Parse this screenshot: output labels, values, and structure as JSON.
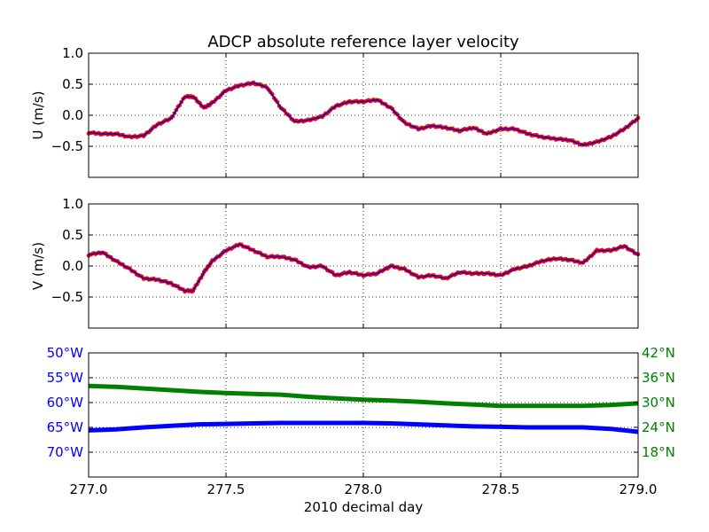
{
  "colors": {
    "axes": "#000000",
    "grid": "#000000",
    "velocity_points": "#ff0000",
    "velocity_line": "#0000cc",
    "longitude": "#0000ff",
    "latitude": "#008000",
    "lon_tick_color": "#0000ff",
    "lat_tick_color": "#008000"
  },
  "chart_data": [
    {
      "type": "line",
      "title": "ADCP absolute reference layer velocity",
      "ylabel": "U (m/s)",
      "xlim": [
        277.0,
        279.0
      ],
      "ylim": [
        -1.0,
        1.0
      ],
      "yticks": [
        "1.0",
        "0.5",
        "0.0",
        "−0.5"
      ],
      "ytick_values": [
        1.0,
        0.5,
        0.0,
        -0.5
      ],
      "grid": true,
      "series": [
        {
          "x": [
            277.0,
            277.05,
            277.1,
            277.15,
            277.2,
            277.25,
            277.3,
            277.35,
            277.38,
            277.42,
            277.45,
            277.5,
            277.55,
            277.6,
            277.65,
            277.7,
            277.75,
            277.8,
            277.85,
            277.9,
            277.95,
            278.0,
            278.05,
            278.1,
            278.15,
            278.2,
            278.25,
            278.3,
            278.35,
            278.4,
            278.45,
            278.5,
            278.55,
            278.6,
            278.65,
            278.7,
            278.75,
            278.8,
            278.85,
            278.9,
            278.95,
            279.0
          ],
          "y": [
            -0.28,
            -0.3,
            -0.3,
            -0.35,
            -0.33,
            -0.15,
            -0.05,
            0.3,
            0.3,
            0.12,
            0.2,
            0.4,
            0.48,
            0.52,
            0.45,
            0.12,
            -0.1,
            -0.08,
            -0.02,
            0.15,
            0.22,
            0.22,
            0.25,
            0.12,
            -0.12,
            -0.22,
            -0.17,
            -0.2,
            -0.25,
            -0.2,
            -0.3,
            -0.22,
            -0.22,
            -0.3,
            -0.35,
            -0.38,
            -0.4,
            -0.48,
            -0.43,
            -0.35,
            -0.22,
            -0.05
          ]
        }
      ]
    },
    {
      "type": "line",
      "ylabel": "V (m/s)",
      "xlim": [
        277.0,
        279.0
      ],
      "ylim": [
        -1.0,
        1.0
      ],
      "yticks": [
        "1.0",
        "0.5",
        "0.0",
        "−0.5"
      ],
      "ytick_values": [
        1.0,
        0.5,
        0.0,
        -0.5
      ],
      "grid": true,
      "series": [
        {
          "x": [
            277.0,
            277.05,
            277.1,
            277.15,
            277.2,
            277.25,
            277.3,
            277.35,
            277.38,
            277.42,
            277.45,
            277.5,
            277.55,
            277.6,
            277.65,
            277.7,
            277.75,
            277.8,
            277.85,
            277.9,
            277.95,
            278.0,
            278.05,
            278.1,
            278.15,
            278.2,
            278.25,
            278.3,
            278.35,
            278.4,
            278.45,
            278.5,
            278.55,
            278.6,
            278.65,
            278.7,
            278.75,
            278.8,
            278.85,
            278.9,
            278.95,
            279.0
          ],
          "y": [
            0.18,
            0.22,
            0.08,
            -0.05,
            -0.2,
            -0.22,
            -0.28,
            -0.4,
            -0.4,
            -0.1,
            0.08,
            0.25,
            0.35,
            0.25,
            0.15,
            0.15,
            0.1,
            -0.02,
            0.0,
            -0.15,
            -0.1,
            -0.15,
            -0.12,
            0.0,
            -0.05,
            -0.18,
            -0.15,
            -0.2,
            -0.1,
            -0.12,
            -0.12,
            -0.15,
            -0.05,
            0.0,
            0.08,
            0.12,
            0.1,
            0.05,
            0.25,
            0.25,
            0.32,
            0.18
          ]
        }
      ]
    },
    {
      "type": "line",
      "xlabel": "2010 decimal day",
      "xlim": [
        277.0,
        279.0
      ],
      "xticks": [
        "277.0",
        "277.5",
        "278.0",
        "278.5",
        "279.0"
      ],
      "xtick_values": [
        277.0,
        277.5,
        278.0,
        278.5,
        279.0
      ],
      "grid": true,
      "left_axis": {
        "ylim": [
          -75,
          -50
        ],
        "ytick_values": [
          -50,
          -55,
          -60,
          -65,
          -70
        ],
        "yticks": [
          "50°W",
          "55°W",
          "60°W",
          "65°W",
          "70°W"
        ]
      },
      "right_axis": {
        "ylim": [
          12,
          42
        ],
        "ytick_values": [
          42,
          36,
          30,
          24,
          18
        ],
        "yticks": [
          "42°N",
          "36°N",
          "30°N",
          "24°N",
          "18°N"
        ]
      },
      "series": [
        {
          "axis": "left",
          "x": [
            277.0,
            277.1,
            277.2,
            277.3,
            277.4,
            277.5,
            277.6,
            277.7,
            277.8,
            277.9,
            278.0,
            278.1,
            278.2,
            278.3,
            278.4,
            278.5,
            278.6,
            278.7,
            278.8,
            278.9,
            279.0
          ],
          "y": [
            -65.6,
            -65.4,
            -65.0,
            -64.7,
            -64.4,
            -64.3,
            -64.2,
            -64.1,
            -64.1,
            -64.1,
            -64.1,
            -64.2,
            -64.4,
            -64.6,
            -64.8,
            -64.9,
            -65.0,
            -65.0,
            -65.0,
            -65.3,
            -65.9
          ]
        },
        {
          "axis": "right",
          "x": [
            277.0,
            277.1,
            277.2,
            277.3,
            277.4,
            277.5,
            277.6,
            277.7,
            277.8,
            277.9,
            278.0,
            278.1,
            278.2,
            278.3,
            278.4,
            278.5,
            278.6,
            278.7,
            278.8,
            278.9,
            279.0
          ],
          "y": [
            34.0,
            33.8,
            33.4,
            33.0,
            32.6,
            32.3,
            32.1,
            31.9,
            31.4,
            31.0,
            30.7,
            30.5,
            30.2,
            29.8,
            29.5,
            29.2,
            29.2,
            29.2,
            29.2,
            29.4,
            29.8
          ]
        }
      ]
    }
  ]
}
